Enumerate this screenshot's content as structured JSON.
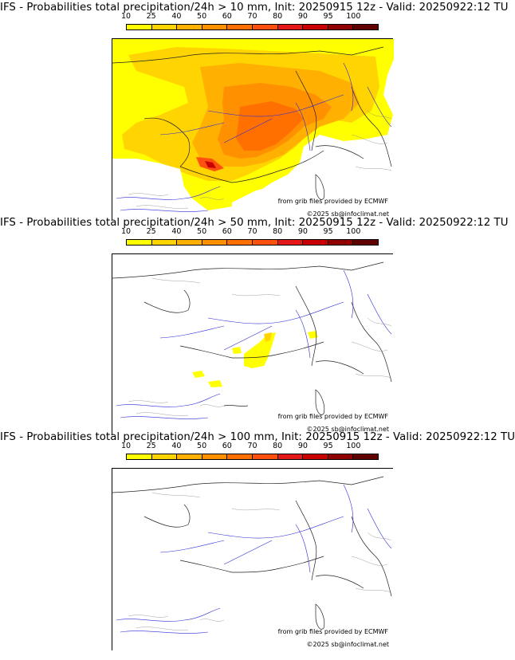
{
  "colorbar": {
    "ticks": [
      "10",
      "25",
      "40",
      "50",
      "60",
      "70",
      "80",
      "90",
      "95",
      "100"
    ],
    "colors": [
      "#ffff00",
      "#ffd400",
      "#ffb000",
      "#ff9000",
      "#ff7000",
      "#ff5010",
      "#e41818",
      "#c80000",
      "#900000",
      "#600000"
    ]
  },
  "panels": [
    {
      "title": "IFS - Probabilities total precipitation/24h > 10 mm, Init: 20250915 12z - Valid: 20250922:12 TU",
      "credit": "from grib files provided by ECMWF",
      "copyright": "©2025 sb@infoclimat.net"
    },
    {
      "title": "IFS - Probabilities total precipitation/24h > 50 mm, Init: 20250915 12z - Valid: 20250922:12 TU",
      "credit": "from grib files provided by ECMWF",
      "copyright": "©2025 sb@infoclimat.net"
    },
    {
      "title": "IFS - Probabilities total precipitation/24h > 100 mm, Init: 20250915 12z - Valid: 20250922:12 TU",
      "credit": "from grib files provided by ECMWF",
      "copyright": "©2025 sb@infoclimat.net"
    }
  ]
}
